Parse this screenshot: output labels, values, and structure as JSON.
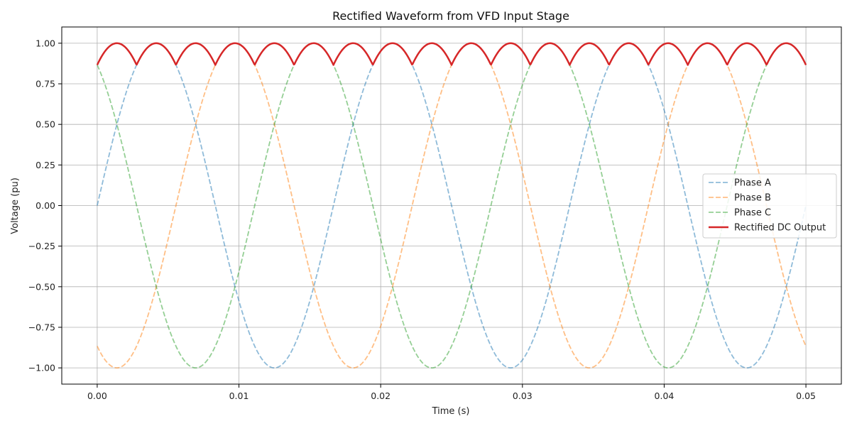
{
  "chart_data": {
    "type": "line",
    "title": "Rectified Waveform from VFD Input Stage",
    "xlabel": "Time (s)",
    "ylabel": "Voltage (pu)",
    "xlim": [
      -0.0025,
      0.0525
    ],
    "ylim": [
      -1.1,
      1.1
    ],
    "x_ticks": [
      0.0,
      0.01,
      0.02,
      0.03,
      0.04,
      0.05
    ],
    "x_tick_labels": [
      "0.00",
      "0.01",
      "0.02",
      "0.03",
      "0.04",
      "0.05"
    ],
    "y_ticks": [
      1.0,
      0.75,
      0.5,
      0.25,
      0.0,
      -0.25,
      -0.5,
      -0.75,
      -1.0
    ],
    "y_tick_labels": [
      "1.00",
      "0.75",
      "0.50",
      "0.25",
      "0.00",
      "−0.25",
      "−0.50",
      "−0.75",
      "−1.00"
    ],
    "grid": true,
    "legend_position": "center-right",
    "frequency_hz": 60,
    "x_range": [
      0,
      0.05
    ],
    "series": [
      {
        "name": "Phase A",
        "color": "#1f77b4",
        "style": "dashed",
        "formula": "sin(2*pi*60*t)",
        "phase_deg": 0,
        "opacity": 0.5
      },
      {
        "name": "Phase B",
        "color": "#ff7f0e",
        "style": "dashed",
        "formula": "sin(2*pi*60*t - 120deg)",
        "phase_deg": -120,
        "opacity": 0.5
      },
      {
        "name": "Phase C",
        "color": "#2ca02c",
        "style": "dashed",
        "formula": "sin(2*pi*60*t + 120deg)",
        "phase_deg": 120,
        "opacity": 0.5
      },
      {
        "name": "Rectified DC Output",
        "color": "#d62728",
        "style": "solid",
        "formula": "max(|A|,|B|,|C|)",
        "opacity": 1.0
      }
    ]
  }
}
